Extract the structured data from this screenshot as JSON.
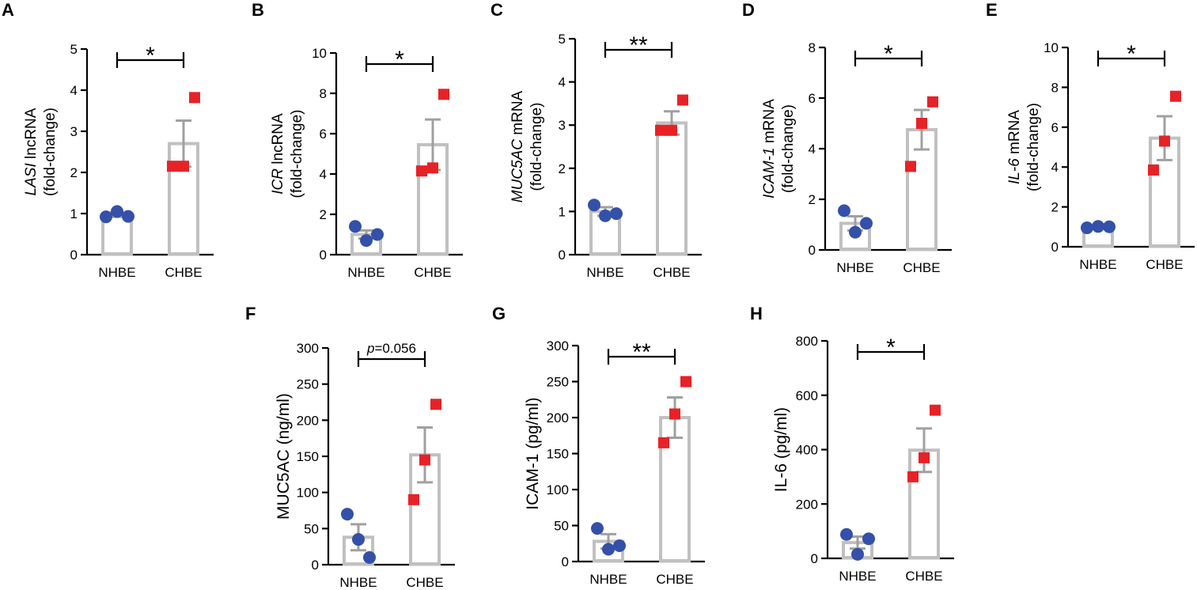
{
  "colors": {
    "nhbe_marker": "#3450a8",
    "chbe_marker": "#e62227",
    "bar_outline": "#c0c0c0",
    "error_bar": "#a0a0a0"
  },
  "chart_data": [
    {
      "panel": "A",
      "type": "bar",
      "ylabel_italic": "LASI",
      "ylabel_rest": " lncRNA",
      "ylabel_line2": "(fold-change)",
      "categories": [
        "NHBE",
        "CHBE"
      ],
      "ylim": [
        0,
        5
      ],
      "yticks": [
        "0",
        "1",
        "2",
        "3",
        "4",
        "5"
      ],
      "means": [
        0.97,
        2.7
      ],
      "sem": [
        0.05,
        0.56
      ],
      "points": [
        [
          0.92,
          1.05,
          0.93
        ],
        [
          2.15,
          2.15,
          3.82
        ]
      ],
      "significance": "*"
    },
    {
      "panel": "B",
      "type": "bar",
      "ylabel_italic": "ICR",
      "ylabel_rest": " lncRNA",
      "ylabel_line2": "(fold-change)",
      "categories": [
        "NHBE",
        "CHBE"
      ],
      "ylim": [
        0,
        10
      ],
      "yticks": [
        "0",
        "2",
        "4",
        "6",
        "8",
        "10"
      ],
      "means": [
        1.0,
        5.45
      ],
      "sem": [
        0.2,
        1.25
      ],
      "points": [
        [
          1.4,
          0.7,
          1.0
        ],
        [
          4.15,
          4.3,
          7.95
        ]
      ],
      "significance": "*"
    },
    {
      "panel": "C",
      "type": "bar",
      "ylabel_italic": "MUC5AC",
      "ylabel_rest": " mRNA",
      "ylabel_line2": "(fold-change)",
      "categories": [
        "NHBE",
        "CHBE"
      ],
      "ylim": [
        0,
        5
      ],
      "yticks": [
        "0",
        "1",
        "2",
        "3",
        "4",
        "5"
      ],
      "means": [
        1.0,
        3.05
      ],
      "sem": [
        0.1,
        0.27
      ],
      "points": [
        [
          1.15,
          0.9,
          0.95
        ],
        [
          2.88,
          2.88,
          3.58
        ]
      ],
      "significance": "**"
    },
    {
      "panel": "D",
      "type": "bar",
      "ylabel_italic": "ICAM-1",
      "ylabel_rest": " mRNA",
      "ylabel_line2": "(fold-change)",
      "categories": [
        "NHBE",
        "CHBE"
      ],
      "ylim": [
        0,
        8
      ],
      "yticks": [
        "0",
        "2",
        "4",
        "6",
        "8"
      ],
      "means": [
        1.05,
        4.75
      ],
      "sem": [
        0.28,
        0.78
      ],
      "points": [
        [
          1.55,
          0.7,
          1.05
        ],
        [
          3.3,
          5.0,
          5.85
        ]
      ],
      "significance": "*"
    },
    {
      "panel": "E",
      "type": "bar",
      "ylabel_italic": "IL-6",
      "ylabel_rest": " mRNA",
      "ylabel_line2": "(fold-change)",
      "categories": [
        "NHBE",
        "CHBE"
      ],
      "ylim": [
        0,
        10
      ],
      "yticks": [
        "0",
        "2",
        "4",
        "6",
        "8",
        "10"
      ],
      "means": [
        1.0,
        5.45
      ],
      "sem": [
        0.05,
        1.1
      ],
      "points": [
        [
          0.95,
          1.02,
          1.0
        ],
        [
          3.85,
          5.3,
          7.55
        ]
      ],
      "significance": "*"
    },
    {
      "panel": "F",
      "type": "bar",
      "ylabel_italic": "",
      "ylabel_rest": "MUC5AC (ng/ml)",
      "ylabel_line2": "",
      "categories": [
        "NHBE",
        "CHBE"
      ],
      "ylim": [
        0,
        300
      ],
      "yticks": [
        "0",
        "50",
        "100",
        "150",
        "200",
        "250",
        "300"
      ],
      "means": [
        38,
        152
      ],
      "sem": [
        18,
        38
      ],
      "points": [
        [
          70,
          35,
          10
        ],
        [
          90,
          145,
          222
        ]
      ],
      "significance_italic": "p",
      "significance": "=0.056"
    },
    {
      "panel": "G",
      "type": "bar",
      "ylabel_italic": "",
      "ylabel_rest": "ICAM-1 (pg/ml)",
      "ylabel_line2": "",
      "categories": [
        "NHBE",
        "CHBE"
      ],
      "ylim": [
        0,
        300
      ],
      "yticks": [
        "0",
        "50",
        "100",
        "150",
        "200",
        "250",
        "300"
      ],
      "means": [
        28,
        200
      ],
      "sem": [
        10,
        28
      ],
      "points": [
        [
          46,
          17,
          22
        ],
        [
          165,
          205,
          250
        ]
      ],
      "significance": "**"
    },
    {
      "panel": "H",
      "type": "bar",
      "ylabel_italic": "",
      "ylabel_rest": "IL-6 (pg/ml)",
      "ylabel_line2": "",
      "categories": [
        "NHBE",
        "CHBE"
      ],
      "ylim": [
        0,
        800
      ],
      "yticks": [
        "0",
        "200",
        "400",
        "600",
        "800"
      ],
      "means": [
        58,
        398
      ],
      "sem": [
        22,
        80
      ],
      "points": [
        [
          88,
          15,
          72
        ],
        [
          300,
          370,
          545
        ]
      ],
      "significance": "*"
    }
  ]
}
